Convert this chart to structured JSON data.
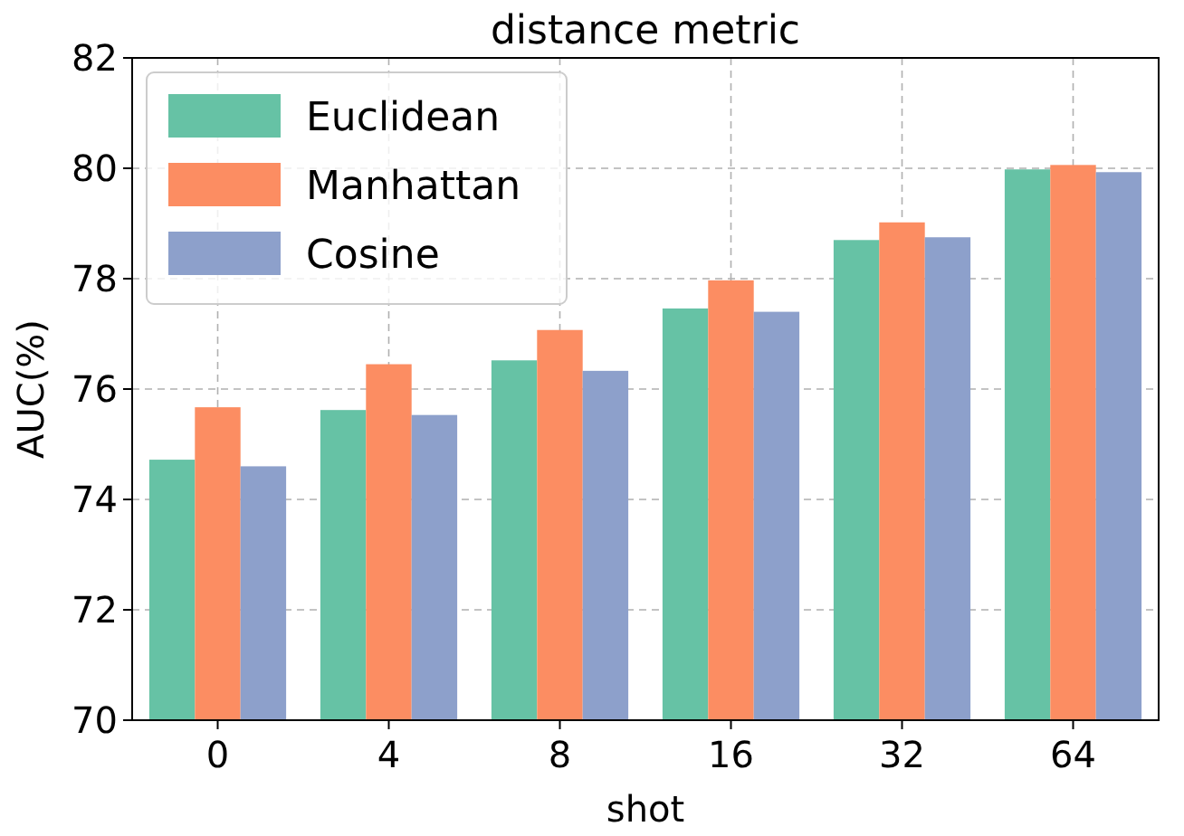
{
  "chart_data": {
    "type": "bar",
    "title": "distance metric",
    "xlabel": "shot",
    "ylabel": "AUC(%)",
    "categories": [
      "0",
      "4",
      "8",
      "16",
      "32",
      "64"
    ],
    "series": [
      {
        "name": "Euclidean",
        "color": "#66c2a5",
        "values": [
          74.72,
          75.62,
          76.52,
          77.46,
          78.7,
          79.98
        ]
      },
      {
        "name": "Manhattan",
        "color": "#fc8d62",
        "values": [
          75.67,
          76.45,
          77.07,
          77.97,
          79.02,
          80.06
        ]
      },
      {
        "name": "Cosine",
        "color": "#8da0cb",
        "values": [
          74.6,
          75.53,
          76.33,
          77.4,
          78.75,
          79.93
        ]
      }
    ],
    "ylim": [
      70,
      82
    ],
    "yticks": [
      70,
      72,
      74,
      76,
      78,
      80,
      82
    ],
    "grid": true,
    "legend": "top left"
  }
}
